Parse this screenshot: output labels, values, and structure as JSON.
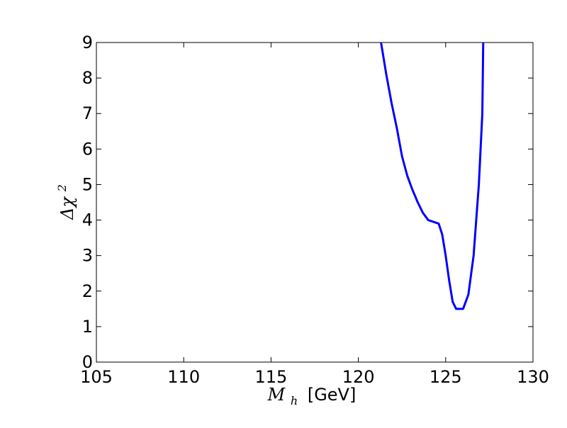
{
  "chart_data": {
    "type": "line",
    "title": "",
    "xlabel_main": "M",
    "xlabel_sub": "h",
    "xlabel_unit": "[GeV]",
    "ylabel_main": "Δχ",
    "ylabel_sup": "2",
    "xlim": [
      105,
      130
    ],
    "ylim": [
      0,
      9
    ],
    "xticks": [
      105,
      110,
      115,
      120,
      125,
      130
    ],
    "yticks": [
      0,
      1,
      2,
      3,
      4,
      5,
      6,
      7,
      8,
      9
    ],
    "grid": false,
    "legend": false,
    "series": [
      {
        "color": "#0000ff",
        "x": [
          121.3,
          121.6,
          121.9,
          122.2,
          122.5,
          122.8,
          123.1,
          123.4,
          123.7,
          124.0,
          124.3,
          124.6,
          124.8,
          125.0,
          125.2,
          125.4,
          125.6,
          125.8,
          126.0,
          126.3,
          126.6,
          126.9,
          127.1
        ],
        "y": [
          9.0,
          8.1,
          7.3,
          6.6,
          5.8,
          5.25,
          4.85,
          4.5,
          4.2,
          4.0,
          3.95,
          3.9,
          3.6,
          3.0,
          2.3,
          1.7,
          1.5,
          1.5,
          1.5,
          1.9,
          3.0,
          5.0,
          7.0
        ]
      }
    ]
  }
}
